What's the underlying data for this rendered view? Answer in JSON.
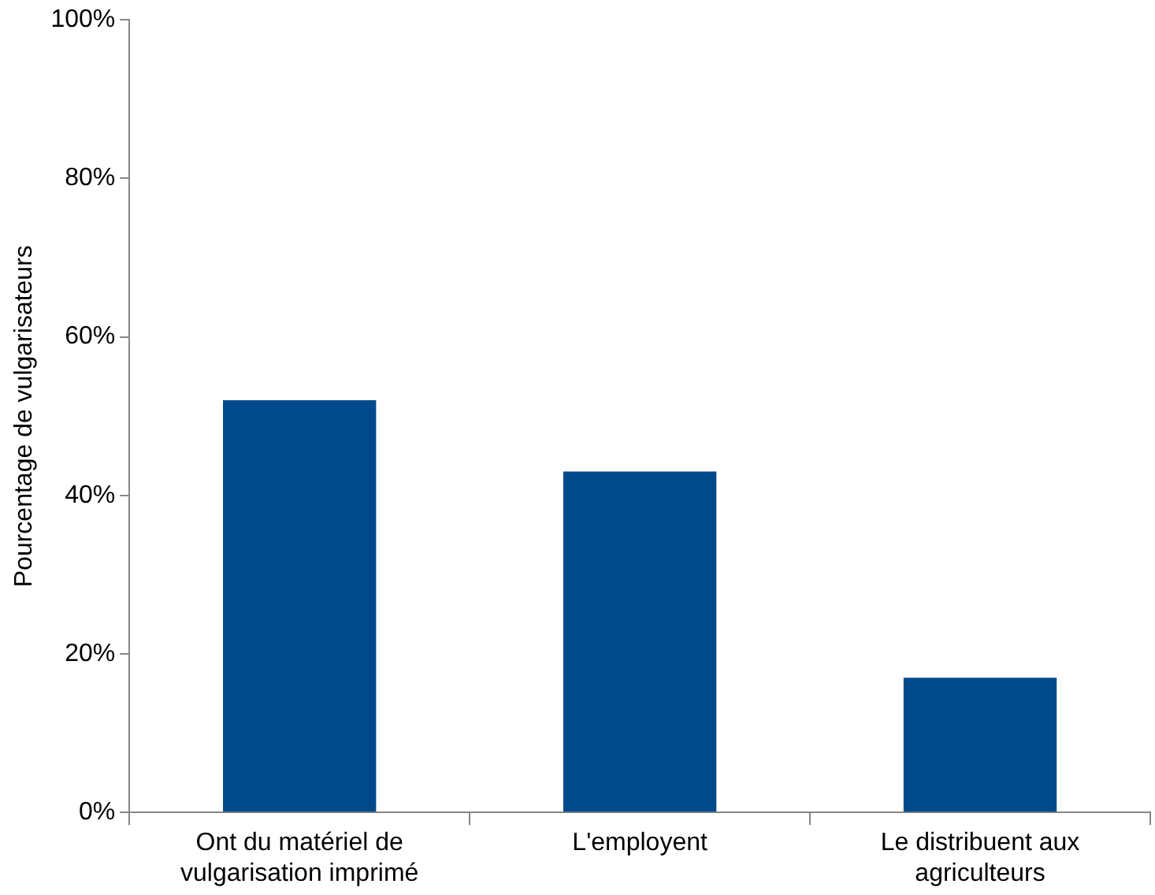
{
  "chart_data": {
    "type": "bar",
    "ylabel": "Pourcentage de vulgarisateurs",
    "categories": [
      "Ont du matériel de vulgarisation imprimé",
      "L'employent",
      "Le distribuent aux agriculteurs"
    ],
    "values": [
      52,
      43,
      17
    ],
    "color": "#004a8c",
    "ylim": [
      0,
      100
    ],
    "yticks": [
      {
        "value": 0,
        "label": "0%"
      },
      {
        "value": 20,
        "label": "20%"
      },
      {
        "value": 40,
        "label": "40%"
      },
      {
        "value": 60,
        "label": "60%"
      },
      {
        "value": 80,
        "label": "80%"
      },
      {
        "value": 100,
        "label": "100%"
      }
    ],
    "legend": false
  }
}
